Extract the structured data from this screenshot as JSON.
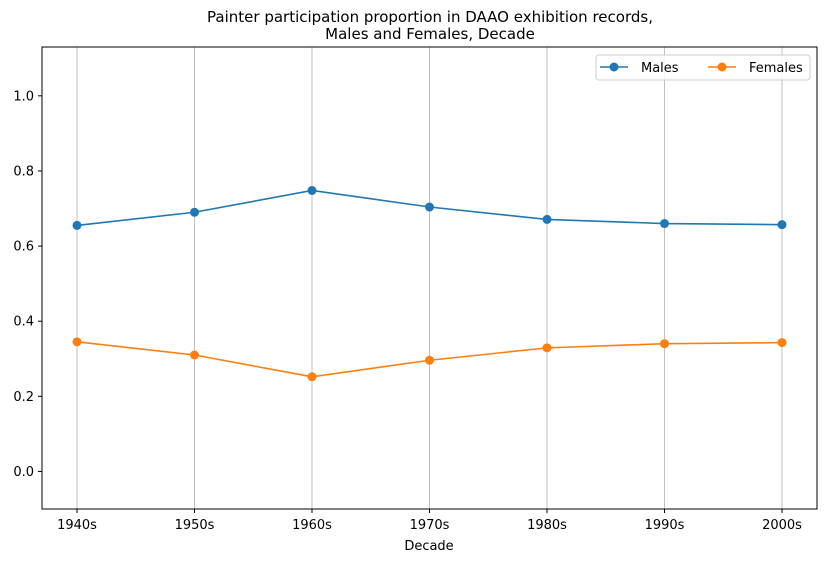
{
  "chart_data": {
    "type": "line",
    "title_line1": "Painter participation proportion in DAAO exhibition records,",
    "title_line2": "Males and Females, Decade",
    "xlabel": "Decade",
    "ylabel": "",
    "categories": [
      "1940s",
      "1950s",
      "1960s",
      "1970s",
      "1980s",
      "1990s",
      "2000s"
    ],
    "series": [
      {
        "name": "Males",
        "color": "#1f77b4",
        "values": [
          0.655,
          0.69,
          0.748,
          0.704,
          0.671,
          0.66,
          0.657
        ]
      },
      {
        "name": "Females",
        "color": "#ff7f0e",
        "values": [
          0.345,
          0.31,
          0.252,
          0.296,
          0.329,
          0.34,
          0.343
        ]
      }
    ],
    "ylim": [
      -0.1,
      1.13
    ],
    "yticks": [
      "0.0",
      "0.2",
      "0.4",
      "0.6",
      "0.8",
      "1.0"
    ],
    "grid": "vertical",
    "legend_position": "top-right",
    "legend_columns": 2
  }
}
